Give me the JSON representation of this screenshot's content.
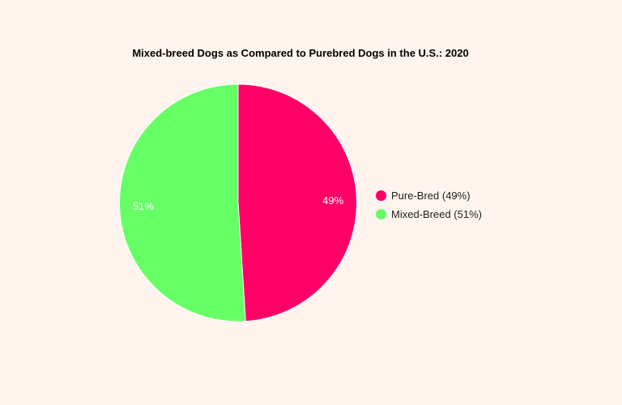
{
  "chart_data": {
    "type": "pie",
    "title": "Mixed-breed Dogs as Compared to Purebred Dogs in the U.S.: 2020",
    "slices": [
      {
        "label": "Pure-Bred (49%)",
        "value": 49,
        "data_label": "49%",
        "color": "#FF0066"
      },
      {
        "label": "Mixed-Breed (51%)",
        "value": 51,
        "data_label": "51%",
        "color": "#66FF66"
      }
    ],
    "legend_position": "right"
  }
}
